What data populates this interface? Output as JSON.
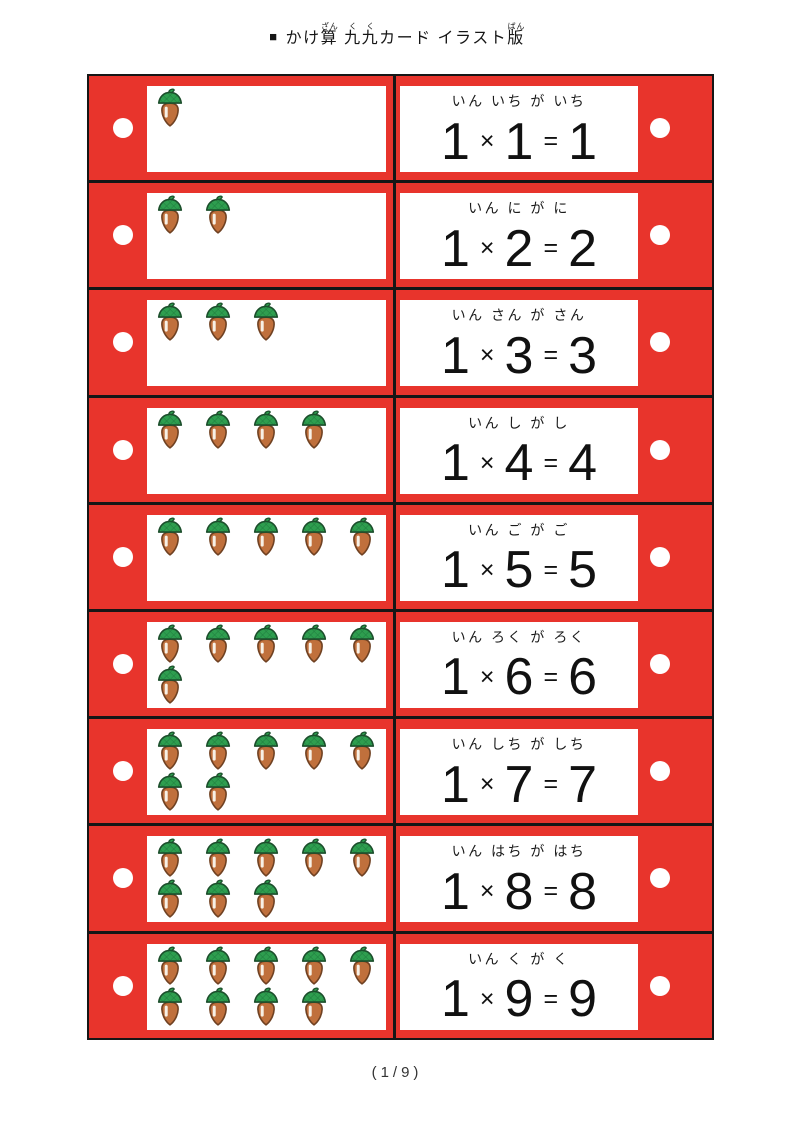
{
  "title": {
    "bullet": "■",
    "plain": "かけ算 九九カード イラスト版",
    "segments": [
      {
        "text": "かけ"
      },
      {
        "text": "算",
        "ruby": "ざん"
      },
      {
        "text": " "
      },
      {
        "text": "九九",
        "ruby": "くく"
      },
      {
        "text": "カード イラスト"
      },
      {
        "text": "版",
        "ruby": "ばん"
      }
    ]
  },
  "symbols": {
    "times": "×",
    "equals": "="
  },
  "cards": [
    {
      "reading": "いん いち が いち",
      "multiplicand": "1",
      "multiplier": "1",
      "product": "1",
      "acorn_count": 1
    },
    {
      "reading": "いん に が に",
      "multiplicand": "1",
      "multiplier": "2",
      "product": "2",
      "acorn_count": 2
    },
    {
      "reading": "いん さん が さん",
      "multiplicand": "1",
      "multiplier": "3",
      "product": "3",
      "acorn_count": 3
    },
    {
      "reading": "いん し が し",
      "multiplicand": "1",
      "multiplier": "4",
      "product": "4",
      "acorn_count": 4
    },
    {
      "reading": "いん ご が ご",
      "multiplicand": "1",
      "multiplier": "5",
      "product": "5",
      "acorn_count": 5
    },
    {
      "reading": "いん ろく が ろく",
      "multiplicand": "1",
      "multiplier": "6",
      "product": "6",
      "acorn_count": 6
    },
    {
      "reading": "いん しち が しち",
      "multiplicand": "1",
      "multiplier": "7",
      "product": "7",
      "acorn_count": 7
    },
    {
      "reading": "いん はち が はち",
      "multiplicand": "1",
      "multiplier": "8",
      "product": "8",
      "acorn_count": 8
    },
    {
      "reading": "いん く が く",
      "multiplicand": "1",
      "multiplier": "9",
      "product": "9",
      "acorn_count": 9
    }
  ],
  "footer": {
    "page_indicator": "(1/9)"
  },
  "colors": {
    "card_red": "#e8342c",
    "line_black": "#161616",
    "acorn_cap_green": "#2e9e4f",
    "acorn_hatch_green": "#1f7c3e",
    "acorn_outline_green": "#1c4f2c",
    "acorn_body_brown": "#c0703c",
    "acorn_body_outline": "#6f4122",
    "acorn_highlight": "#f7f0e6"
  }
}
